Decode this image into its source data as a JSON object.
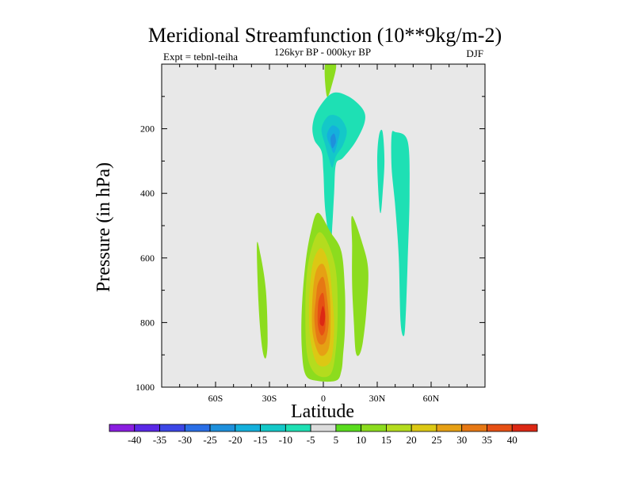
{
  "chart_data": {
    "type": "heatmap",
    "title": "Meridional Streamfunction (10**9kg/m-2)",
    "subtitle_left": "Expt = tebnl-teiha",
    "subtitle_center": "126kyr BP - 000kyr BP",
    "subtitle_right": "DJF",
    "xlabel": "Latitude",
    "ylabel": "Pressure (in hPa)",
    "xlim": [
      -90,
      90
    ],
    "ylim": [
      1000,
      0
    ],
    "x_ticks": [
      {
        "value": -60,
        "label": "60S"
      },
      {
        "value": -30,
        "label": "30S"
      },
      {
        "value": 0,
        "label": "0"
      },
      {
        "value": 30,
        "label": "30N"
      },
      {
        "value": 60,
        "label": "60N"
      }
    ],
    "y_ticks": [
      {
        "value": 200,
        "label": "200"
      },
      {
        "value": 400,
        "label": "400"
      },
      {
        "value": 600,
        "label": "600"
      },
      {
        "value": 800,
        "label": "800"
      },
      {
        "value": 1000,
        "label": "1000"
      }
    ],
    "background_color": "#e8e8e8",
    "colorbar": {
      "labels": [
        "-40",
        "-35",
        "-30",
        "-25",
        "-20",
        "-15",
        "-10",
        "-5",
        "5",
        "10",
        "15",
        "20",
        "25",
        "30",
        "35",
        "40"
      ],
      "colors": [
        "#8a1ee0",
        "#5a28e6",
        "#3c46e6",
        "#2a6ee6",
        "#1e90dc",
        "#14b0dc",
        "#14c8c8",
        "#1ee0b4",
        "#dcdcdc",
        "#5adc1e",
        "#8cdc1e",
        "#b4dc1e",
        "#dcc814",
        "#e6a014",
        "#e67814",
        "#e65014",
        "#dc2814"
      ]
    },
    "features": [
      {
        "name": "band-top-center",
        "value": 10,
        "points": [
          [
            1,
            0
          ],
          [
            7,
            0
          ],
          [
            5,
            60
          ],
          [
            2,
            100
          ]
        ]
      },
      {
        "name": "cell-upper-neg-outer",
        "value": -10,
        "points": [
          [
            -6,
            190
          ],
          [
            -3,
            140
          ],
          [
            5,
            90
          ],
          [
            14,
            100
          ],
          [
            22,
            140
          ],
          [
            23,
            180
          ],
          [
            18,
            240
          ],
          [
            11,
            290
          ],
          [
            7,
            310
          ],
          [
            6,
            400
          ],
          [
            5,
            500
          ],
          [
            4,
            560
          ],
          [
            1,
            450
          ],
          [
            0,
            330
          ],
          [
            -1,
            270
          ],
          [
            -5,
            235
          ]
        ]
      },
      {
        "name": "cell-upper-neg-mid",
        "value": -15,
        "points": [
          [
            -1,
            200
          ],
          [
            3,
            160
          ],
          [
            9,
            165
          ],
          [
            13,
            205
          ],
          [
            11,
            250
          ],
          [
            7,
            285
          ],
          [
            5,
            320
          ],
          [
            3,
            290
          ],
          [
            1,
            250
          ]
        ]
      },
      {
        "name": "cell-upper-neg-inner",
        "value": -20,
        "points": [
          [
            2,
            220
          ],
          [
            5,
            190
          ],
          [
            9,
            205
          ],
          [
            8,
            240
          ],
          [
            6,
            275
          ],
          [
            4,
            255
          ]
        ]
      },
      {
        "name": "cell-upper-neg-core",
        "value": -25,
        "points": [
          [
            4,
            230
          ],
          [
            6,
            215
          ],
          [
            7,
            240
          ],
          [
            5,
            260
          ]
        ]
      },
      {
        "name": "streak-30n-neg",
        "value": -10,
        "points": [
          [
            31,
            220
          ],
          [
            33,
            210
          ],
          [
            34,
            300
          ],
          [
            33,
            400
          ],
          [
            32,
            460
          ],
          [
            31,
            430
          ],
          [
            30,
            300
          ]
        ]
      },
      {
        "name": "streak-45n-neg",
        "value": -10,
        "points": [
          [
            38,
            220
          ],
          [
            40,
            210
          ],
          [
            47,
            240
          ],
          [
            48,
            400
          ],
          [
            47,
            600
          ],
          [
            46,
            760
          ],
          [
            45,
            840
          ],
          [
            43,
            800
          ],
          [
            42,
            600
          ],
          [
            40,
            440
          ],
          [
            38,
            320
          ]
        ]
      },
      {
        "name": "streak-35s-pos",
        "value": 10,
        "points": [
          [
            -37,
            560
          ],
          [
            -35,
            590
          ],
          [
            -32,
            700
          ],
          [
            -31,
            850
          ],
          [
            -32,
            910
          ],
          [
            -34,
            880
          ],
          [
            -36,
            750
          ]
        ]
      },
      {
        "name": "streak-20n-pos",
        "value": 10,
        "points": [
          [
            16,
            470
          ],
          [
            22,
            560
          ],
          [
            25,
            640
          ],
          [
            24,
            760
          ],
          [
            22,
            860
          ],
          [
            20,
            900
          ],
          [
            18,
            890
          ],
          [
            17,
            800
          ],
          [
            16,
            680
          ],
          [
            16,
            560
          ]
        ]
      },
      {
        "name": "cell-main-pos-outer",
        "value": 10,
        "points": [
          [
            -7,
            520
          ],
          [
            -3,
            460
          ],
          [
            4,
            520
          ],
          [
            10,
            580
          ],
          [
            12,
            700
          ],
          [
            12,
            820
          ],
          [
            11,
            900
          ],
          [
            10,
            950
          ],
          [
            7,
            980
          ],
          [
            -4,
            980
          ],
          [
            -10,
            960
          ],
          [
            -12,
            880
          ],
          [
            -12,
            760
          ],
          [
            -10,
            620
          ]
        ]
      },
      {
        "name": "cell-main-pos-2",
        "value": 15,
        "points": [
          [
            -6,
            560
          ],
          [
            -2,
            520
          ],
          [
            3,
            560
          ],
          [
            7,
            640
          ],
          [
            8,
            760
          ],
          [
            7,
            880
          ],
          [
            4,
            960
          ],
          [
            -4,
            960
          ],
          [
            -9,
            900
          ],
          [
            -10,
            760
          ],
          [
            -9,
            640
          ]
        ]
      },
      {
        "name": "cell-main-pos-3",
        "value": 20,
        "points": [
          [
            -5,
            600
          ],
          [
            -1,
            570
          ],
          [
            3,
            620
          ],
          [
            5,
            720
          ],
          [
            6,
            820
          ],
          [
            4,
            920
          ],
          [
            -3,
            930
          ],
          [
            -7,
            860
          ],
          [
            -8,
            760
          ],
          [
            -7,
            660
          ]
        ]
      },
      {
        "name": "cell-main-pos-4",
        "value": 25,
        "points": [
          [
            -4,
            640
          ],
          [
            0,
            620
          ],
          [
            3,
            680
          ],
          [
            4,
            780
          ],
          [
            3,
            880
          ],
          [
            -2,
            900
          ],
          [
            -6,
            830
          ],
          [
            -6,
            720
          ]
        ]
      },
      {
        "name": "cell-main-pos-5",
        "value": 30,
        "points": [
          [
            -3,
            680
          ],
          [
            0,
            660
          ],
          [
            2,
            720
          ],
          [
            3,
            800
          ],
          [
            1,
            860
          ],
          [
            -3,
            860
          ],
          [
            -5,
            790
          ],
          [
            -4,
            720
          ]
        ]
      },
      {
        "name": "cell-main-pos-6",
        "value": 35,
        "points": [
          [
            -2,
            720
          ],
          [
            0,
            710
          ],
          [
            1,
            760
          ],
          [
            1,
            820
          ],
          [
            -1,
            840
          ],
          [
            -3,
            810
          ],
          [
            -3,
            750
          ]
        ]
      },
      {
        "name": "cell-main-pos-core",
        "value": 40,
        "points": [
          [
            -1,
            760
          ],
          [
            0,
            750
          ],
          [
            1,
            780
          ],
          [
            0,
            810
          ],
          [
            -2,
            800
          ]
        ]
      }
    ]
  }
}
